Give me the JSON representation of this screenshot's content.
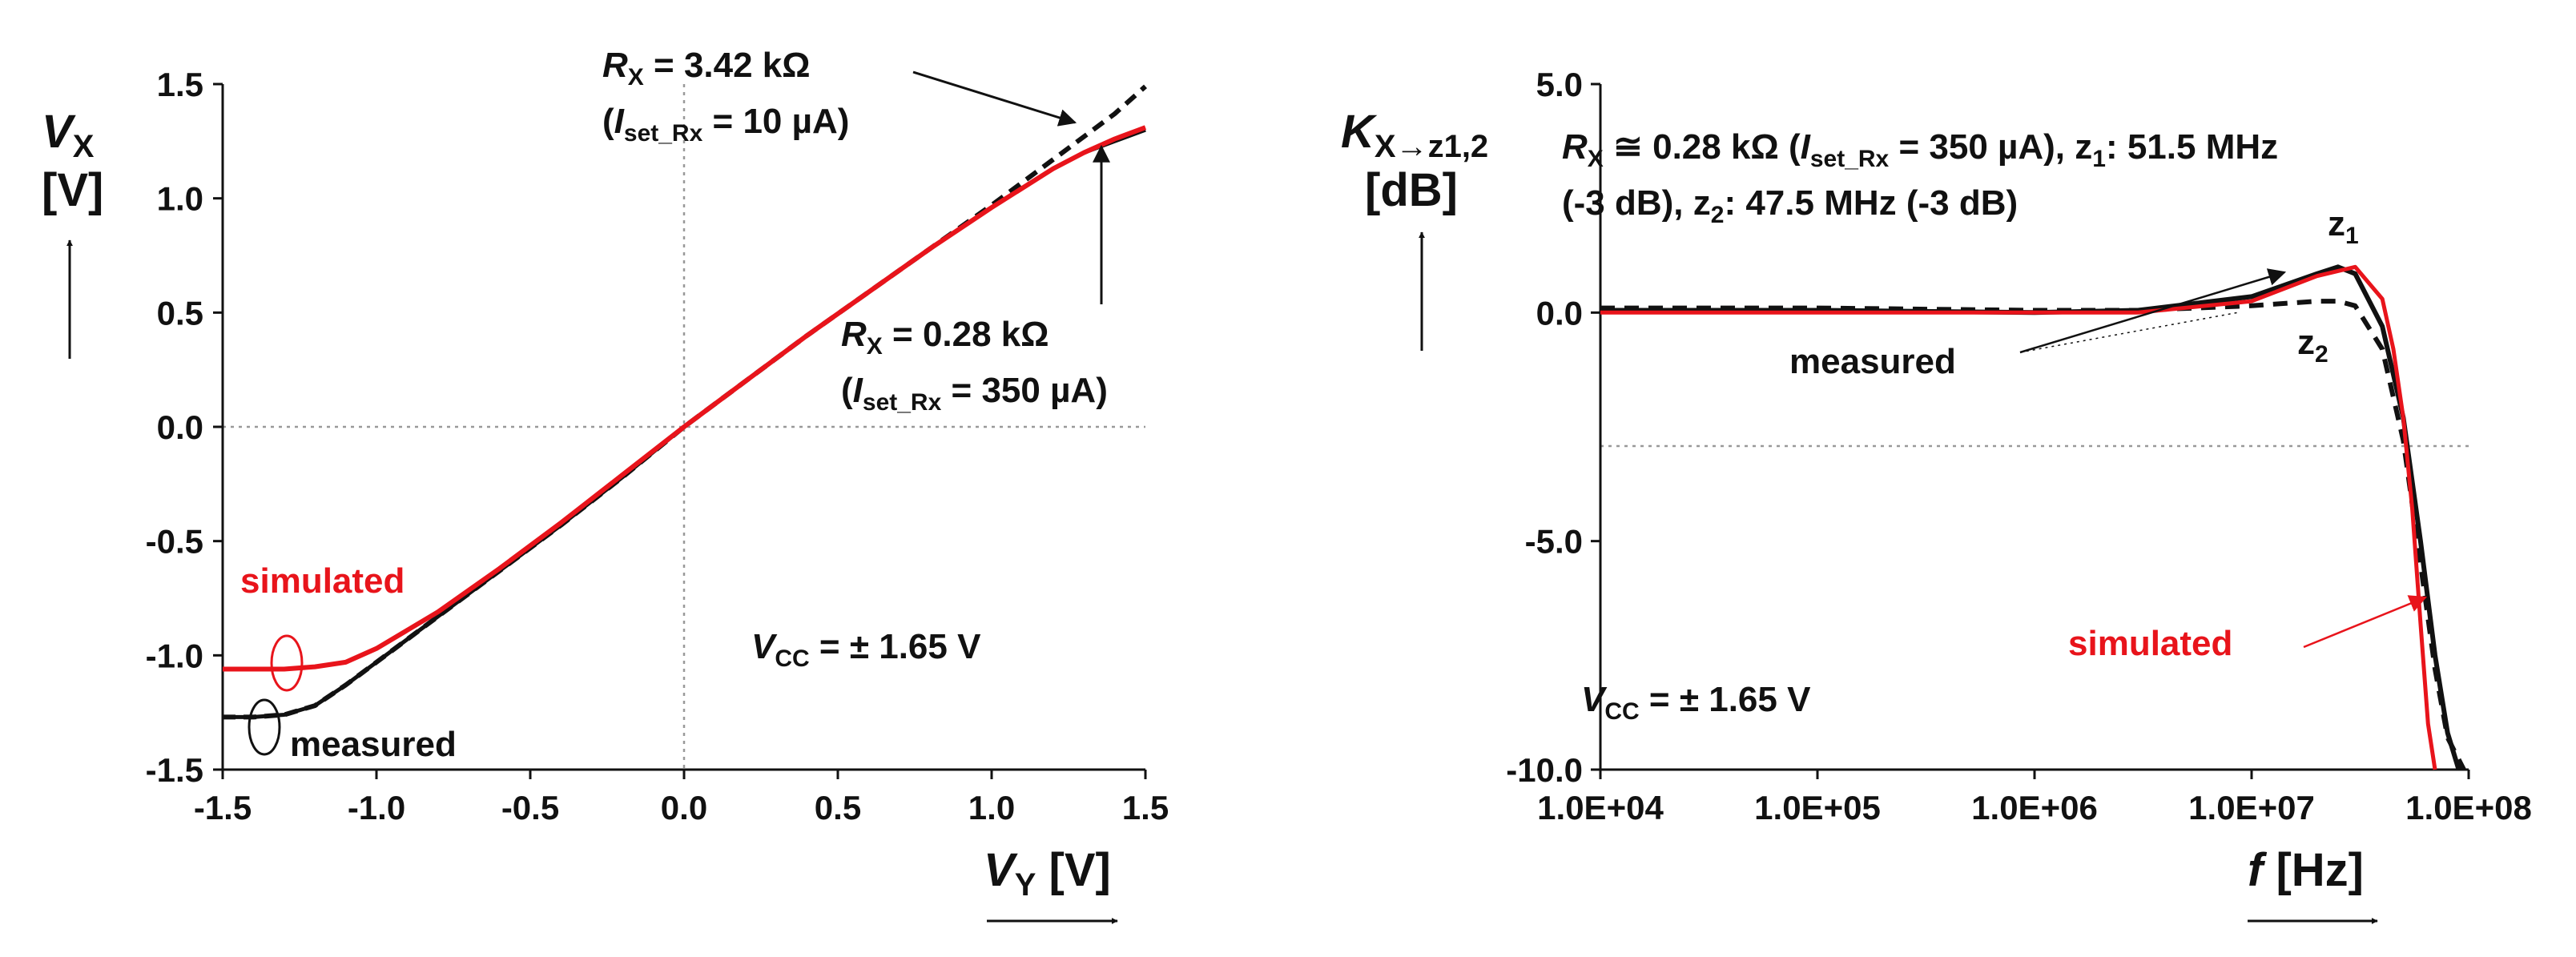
{
  "colors": {
    "measured": "#111111",
    "simulated": "#e8141b",
    "reference": "#999999"
  },
  "chart_data": [
    {
      "type": "line",
      "title": "",
      "xlabel": {
        "symbol": "V",
        "sub": "Y",
        "unit": "[V]"
      },
      "ylabel": {
        "symbol": "V",
        "sub": "X",
        "unit": "[V]"
      },
      "xlim": [
        -1.5,
        1.5
      ],
      "ylim": [
        -1.5,
        1.5
      ],
      "x_ticks": [
        "-1.5",
        "-1.0",
        "-0.5",
        "0.0",
        "0.5",
        "1.0",
        "1.5"
      ],
      "y_ticks": [
        "1.5",
        "1.0",
        "0.5",
        "0.0",
        "-0.5",
        "-1.0",
        "-1.5"
      ],
      "reference_lines": {
        "x": 0,
        "y": 0
      },
      "series": [
        {
          "name": "measured, RX = 3.42 kΩ (Iset_Rx = 10 µA)",
          "style": "dashed",
          "x": [
            -1.5,
            -1.4,
            -1.3,
            -1.2,
            -1.1,
            -1.0,
            -0.8,
            -0.6,
            -0.4,
            -0.2,
            0.0,
            0.2,
            0.4,
            0.6,
            0.8,
            1.0,
            1.2,
            1.4,
            1.5
          ],
          "values": [
            -1.27,
            -1.27,
            -1.26,
            -1.22,
            -1.13,
            -1.03,
            -0.83,
            -0.63,
            -0.43,
            -0.22,
            0.0,
            0.2,
            0.4,
            0.59,
            0.78,
            0.97,
            1.17,
            1.37,
            1.49
          ]
        },
        {
          "name": "measured, RX = 0.28 kΩ (Iset_Rx = 350 µA)",
          "style": "solid",
          "x": [
            -1.5,
            -1.4,
            -1.3,
            -1.2,
            -1.1,
            -1.0,
            -0.8,
            -0.6,
            -0.4,
            -0.2,
            0.0,
            0.2,
            0.4,
            0.6,
            0.8,
            1.0,
            1.2,
            1.3,
            1.4,
            1.5
          ],
          "values": [
            -1.27,
            -1.27,
            -1.26,
            -1.22,
            -1.13,
            -1.03,
            -0.83,
            -0.63,
            -0.43,
            -0.22,
            0.0,
            0.2,
            0.4,
            0.59,
            0.78,
            0.96,
            1.13,
            1.2,
            1.25,
            1.3
          ]
        },
        {
          "name": "simulated, RX = 0.28 kΩ",
          "style": "solid",
          "x": [
            -1.5,
            -1.4,
            -1.3,
            -1.2,
            -1.1,
            -1.0,
            -0.8,
            -0.6,
            -0.4,
            -0.2,
            0.0,
            0.2,
            0.4,
            0.6,
            0.8,
            1.0,
            1.2,
            1.3,
            1.4,
            1.5
          ],
          "values": [
            -1.06,
            -1.06,
            -1.06,
            -1.05,
            -1.03,
            -0.97,
            -0.81,
            -0.62,
            -0.42,
            -0.21,
            0.0,
            0.2,
            0.4,
            0.59,
            0.78,
            0.96,
            1.13,
            1.2,
            1.26,
            1.31
          ]
        }
      ],
      "annotations": {
        "rx_high": {
          "symbol": "R",
          "sub": "X",
          "text": " = 3.42 kΩ"
        },
        "iset_high": {
          "open": "(",
          "symbol": "I",
          "sub": "set_Rx",
          "text": " = 10 µA)"
        },
        "rx_low": {
          "symbol": "R",
          "sub": "X",
          "text": " = 0.28 kΩ"
        },
        "iset_low": {
          "open": "(",
          "symbol": "I",
          "sub": "set_Rx",
          "text": " = 350 µA)"
        },
        "simulated": "simulated",
        "measured": "measured",
        "vcc": {
          "symbol": "V",
          "sub": "CC",
          "text": " = ± 1.65 V"
        }
      }
    },
    {
      "type": "line",
      "title": "",
      "xlabel": {
        "symbol": "f",
        "unit": " [Hz]"
      },
      "ylabel": {
        "symbol": "K",
        "sub": "X→z1,2",
        "unit": "[dB]"
      },
      "xscale": "log",
      "xlim": [
        10000,
        100000000
      ],
      "ylim": [
        -10.0,
        5.0
      ],
      "x_ticks": [
        "1.0E+04",
        "1.0E+05",
        "1.0E+06",
        "1.0E+07",
        "1.0E+08"
      ],
      "y_ticks": [
        "5.0",
        "0.0",
        "-5.0",
        "-10.0"
      ],
      "reference_lines": {
        "y": -3
      },
      "series": [
        {
          "name": "measured z1",
          "style": "solid",
          "x": [
            10000,
            100000,
            1000000,
            3000000,
            10000000,
            20000000,
            25000000,
            30000000,
            40000000,
            50000000,
            60000000,
            70000000,
            80000000,
            90000000
          ],
          "values": [
            0.05,
            0.05,
            0.0,
            0.05,
            0.35,
            0.85,
            1.0,
            0.85,
            -0.3,
            -2.3,
            -5.0,
            -7.5,
            -9.2,
            -10.0
          ]
        },
        {
          "name": "measured z2",
          "style": "dashed",
          "x": [
            10000,
            100000,
            1000000,
            3000000,
            10000000,
            20000000,
            25000000,
            30000000,
            40000000,
            50000000,
            60000000,
            70000000,
            80000000,
            95000000
          ],
          "values": [
            0.1,
            0.1,
            0.05,
            0.05,
            0.15,
            0.25,
            0.25,
            0.15,
            -0.8,
            -2.8,
            -5.5,
            -7.8,
            -9.3,
            -10.0
          ]
        },
        {
          "name": "simulated",
          "style": "solid",
          "x": [
            10000,
            100000,
            1000000,
            3000000,
            10000000,
            20000000,
            30000000,
            40000000,
            45000000,
            50000000,
            55000000,
            60000000,
            65000000,
            70000000
          ],
          "values": [
            0.0,
            0.0,
            0.0,
            0.0,
            0.25,
            0.8,
            1.0,
            0.3,
            -0.8,
            -2.3,
            -4.3,
            -6.8,
            -9.0,
            -10.0
          ]
        }
      ],
      "annotations": {
        "line1": {
          "symbol": "R",
          "sub": "X",
          "text1": " ≅ 0.28 kΩ (",
          "symbol2": "I",
          "sub2": "set_Rx",
          "text2": " = 350 µA), z",
          "sub3": "1",
          "text3": ": 51.5 MHz"
        },
        "line2": {
          "text1": "(-3 dB), z",
          "sub": "2",
          "text2": ": 47.5 MHz (-3 dB)"
        },
        "z1": {
          "text": "z",
          "sub": "1"
        },
        "z2": {
          "text": "z",
          "sub": "2"
        },
        "measured": "measured",
        "simulated": "simulated",
        "vcc": {
          "symbol": "V",
          "sub": "CC",
          "text": " = ± 1.65 V"
        }
      }
    }
  ]
}
